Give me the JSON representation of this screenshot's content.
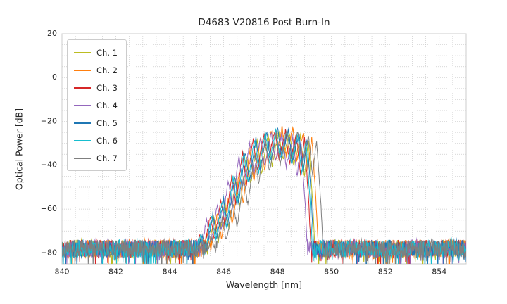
{
  "chart_data": {
    "type": "line",
    "title": "D4683 V20816 Post Burn-In",
    "xlabel": "Wavelength [nm]",
    "ylabel": "Optical Power [dB]",
    "xlim": [
      840,
      855
    ],
    "ylim": [
      -85,
      20
    ],
    "xticks": [
      840,
      842,
      844,
      846,
      848,
      850,
      852,
      854
    ],
    "yticks": [
      20,
      0,
      -20,
      -40,
      -60,
      -80
    ],
    "grid": {
      "x_minor_step": 0.5,
      "y_minor_step": 5,
      "style": "dotted",
      "color": "#c9c9c9"
    },
    "legend_position": "upper-left",
    "noise_floor": {
      "mean_db": -78,
      "spread_db": 8,
      "spike_prob": 0.06,
      "spike_depth_db": 10
    },
    "envelope": [
      [
        845.0,
        -85
      ],
      [
        845.25,
        -72
      ],
      [
        845.4,
        -80
      ],
      [
        845.65,
        -63
      ],
      [
        845.8,
        -74
      ],
      [
        846.05,
        -56
      ],
      [
        846.2,
        -68
      ],
      [
        846.45,
        -45
      ],
      [
        846.6,
        -58
      ],
      [
        846.85,
        -34
      ],
      [
        847.0,
        -48
      ],
      [
        847.25,
        -28
      ],
      [
        847.4,
        -43
      ],
      [
        847.65,
        -25
      ],
      [
        847.8,
        -39
      ],
      [
        848.05,
        -23.5
      ],
      [
        848.2,
        -37
      ],
      [
        848.45,
        -24
      ],
      [
        848.6,
        -39
      ],
      [
        848.85,
        -26
      ],
      [
        849.0,
        -44
      ],
      [
        849.15,
        -28
      ],
      [
        849.3,
        -55
      ],
      [
        849.42,
        -85
      ]
    ],
    "series": [
      {
        "name": "Ch. 1",
        "color": "#bcbd22",
        "dx": 0.0,
        "dy": -1.0,
        "seed": 11
      },
      {
        "name": "Ch. 2",
        "color": "#ff7f0e",
        "dx": 0.12,
        "dy": 1.0,
        "seed": 22
      },
      {
        "name": "Ch. 3",
        "color": "#d62728",
        "dx": -0.15,
        "dy": 0.0,
        "seed": 33
      },
      {
        "name": "Ch. 4",
        "color": "#9467bd",
        "dx": -0.28,
        "dy": -1.5,
        "seed": 44
      },
      {
        "name": "Ch. 5",
        "color": "#1f77b4",
        "dx": -0.05,
        "dy": 0.5,
        "seed": 55
      },
      {
        "name": "Ch. 6",
        "color": "#17becf",
        "dx": -0.1,
        "dy": 0.0,
        "seed": 66
      },
      {
        "name": "Ch. 7",
        "color": "#7f7f7f",
        "dx": 0.3,
        "dy": -0.5,
        "seed": 77
      }
    ]
  }
}
